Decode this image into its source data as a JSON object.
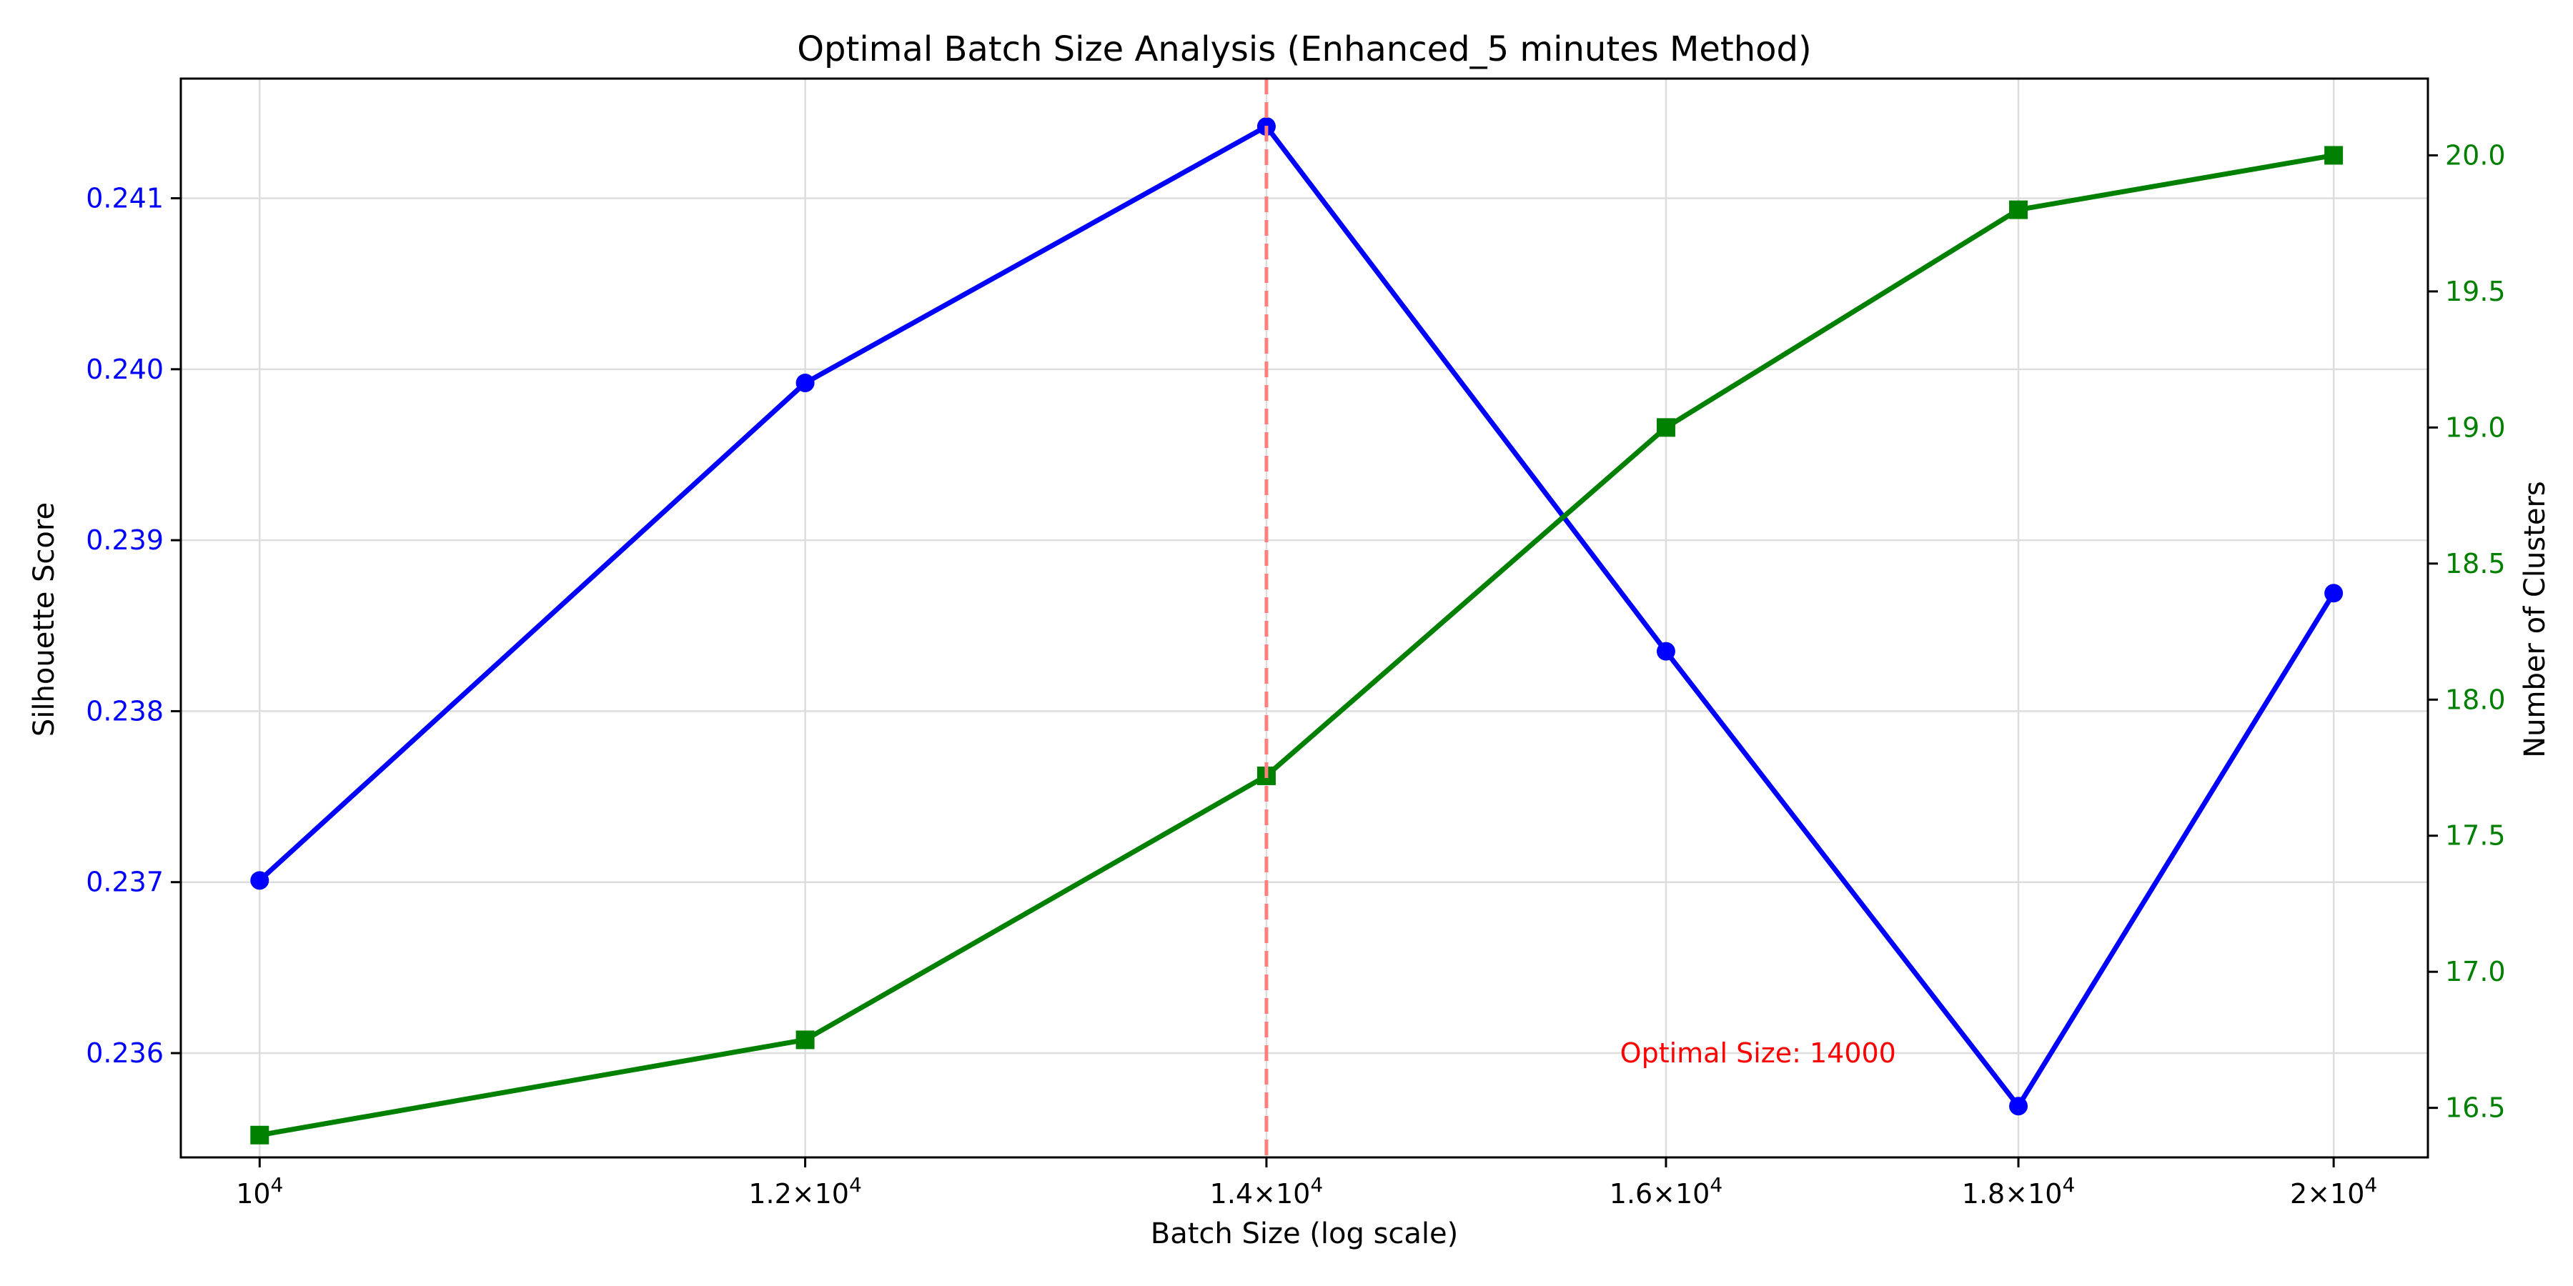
{
  "chart_data": {
    "type": "line",
    "title": "Optimal Batch Size Analysis (Enhanced_5 minutes Method)",
    "xlabel": "Batch Size (log scale)",
    "ylabel_left": "Silhouette Score",
    "ylabel_right": "Number of Clusters",
    "x_scale": "log",
    "xlim": [
      9740,
      20640
    ],
    "ylim_left": [
      0.23539,
      0.2417
    ],
    "ylim_right": [
      16.318,
      20.282
    ],
    "x": [
      10000,
      12000,
      14000,
      16000,
      18000,
      20000
    ],
    "x_tick_labels": [
      {
        "value": 10000,
        "base": "10",
        "exp": "4",
        "mult": ""
      },
      {
        "value": 12000,
        "base": "10",
        "exp": "4",
        "mult": "1.2"
      },
      {
        "value": 14000,
        "base": "10",
        "exp": "4",
        "mult": "1.4"
      },
      {
        "value": 16000,
        "base": "10",
        "exp": "4",
        "mult": "1.6"
      },
      {
        "value": 18000,
        "base": "10",
        "exp": "4",
        "mult": "1.8"
      },
      {
        "value": 20000,
        "base": "10",
        "exp": "4",
        "mult": "2"
      }
    ],
    "y_left_ticks": [
      0.236,
      0.237,
      0.238,
      0.239,
      0.24,
      0.241
    ],
    "y_left_tick_labels": [
      "0.236",
      "0.237",
      "0.238",
      "0.239",
      "0.240",
      "0.241"
    ],
    "y_right_ticks": [
      16.5,
      17.0,
      17.5,
      18.0,
      18.5,
      19.0,
      19.5,
      20.0
    ],
    "y_right_tick_labels": [
      "16.5",
      "17.0",
      "17.5",
      "18.0",
      "18.5",
      "19.0",
      "19.5",
      "20.0"
    ],
    "series": [
      {
        "axis": "left",
        "color": "#0000ff",
        "marker": "circle",
        "values": [
          0.23701,
          0.23992,
          0.24142,
          0.23835,
          0.23569,
          0.23869
        ]
      },
      {
        "axis": "right",
        "color": "#008000",
        "marker": "square",
        "values": [
          16.4,
          16.75,
          17.72,
          19.0,
          19.8,
          20.0
        ]
      }
    ],
    "vline": {
      "x": 14000,
      "color": "#ff7f7f",
      "style": "dashed"
    },
    "annotation": {
      "text": "Optimal Size: 14000",
      "x": 16500,
      "y": 0.236,
      "color": "#ff0000"
    },
    "grid": true,
    "left_axis_color": "#0000ff",
    "right_axis_color": "#008000"
  }
}
